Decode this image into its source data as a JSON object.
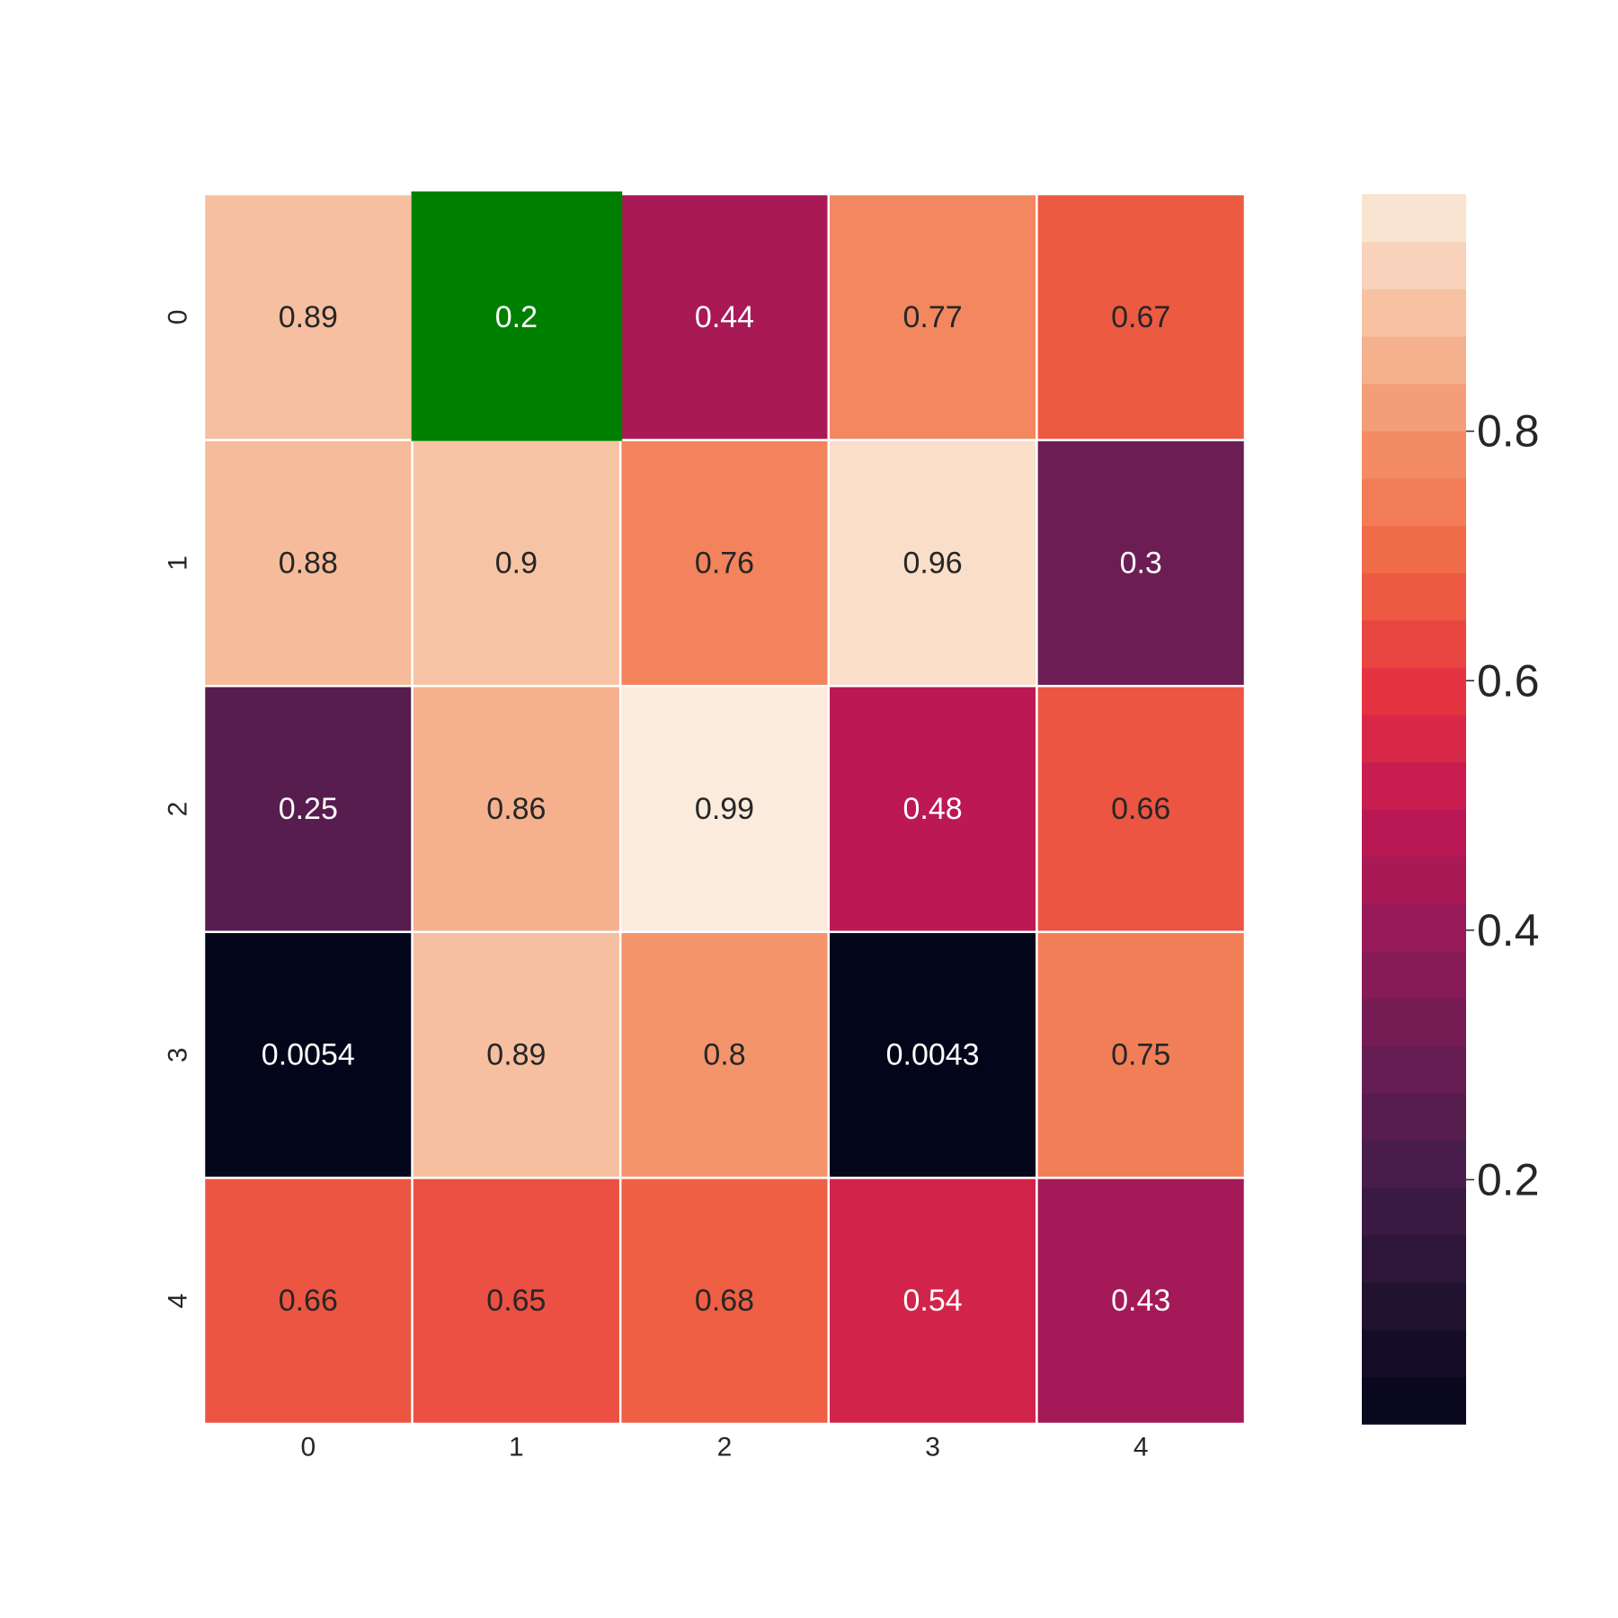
{
  "chart_data": {
    "type": "heatmap",
    "title": "",
    "xlabel": "",
    "ylabel": "",
    "x_ticks": [
      "0",
      "1",
      "2",
      "3",
      "4"
    ],
    "y_ticks": [
      "0",
      "1",
      "2",
      "3",
      "4"
    ],
    "values": [
      [
        0.89,
        0.2,
        0.44,
        0.77,
        0.67
      ],
      [
        0.88,
        0.9,
        0.76,
        0.96,
        0.3
      ],
      [
        0.25,
        0.86,
        0.99,
        0.48,
        0.66
      ],
      [
        0.0054,
        0.89,
        0.8,
        0.0043,
        0.75
      ],
      [
        0.66,
        0.65,
        0.68,
        0.54,
        0.43
      ]
    ],
    "labels": [
      [
        "0.89",
        "0.2",
        "0.44",
        "0.77",
        "0.67"
      ],
      [
        "0.88",
        "0.9",
        "0.76",
        "0.96",
        "0.3"
      ],
      [
        "0.25",
        "0.86",
        "0.99",
        "0.48",
        "0.66"
      ],
      [
        "0.0054",
        "0.89",
        "0.8",
        "0.0043",
        "0.75"
      ],
      [
        "0.66",
        "0.65",
        "0.68",
        "0.54",
        "0.43"
      ]
    ],
    "highlighted_cell": {
      "row": 0,
      "col": 1,
      "color": "#008000"
    },
    "colormap": "rocket",
    "colorbar": {
      "range": [
        0.0043,
        0.99
      ],
      "ticks": [
        0.2,
        0.4,
        0.6,
        0.8
      ],
      "tick_labels": [
        "0.2",
        "0.4",
        "0.6",
        "0.8"
      ],
      "placement": "right"
    },
    "grid_line_color": "#ffffff"
  }
}
